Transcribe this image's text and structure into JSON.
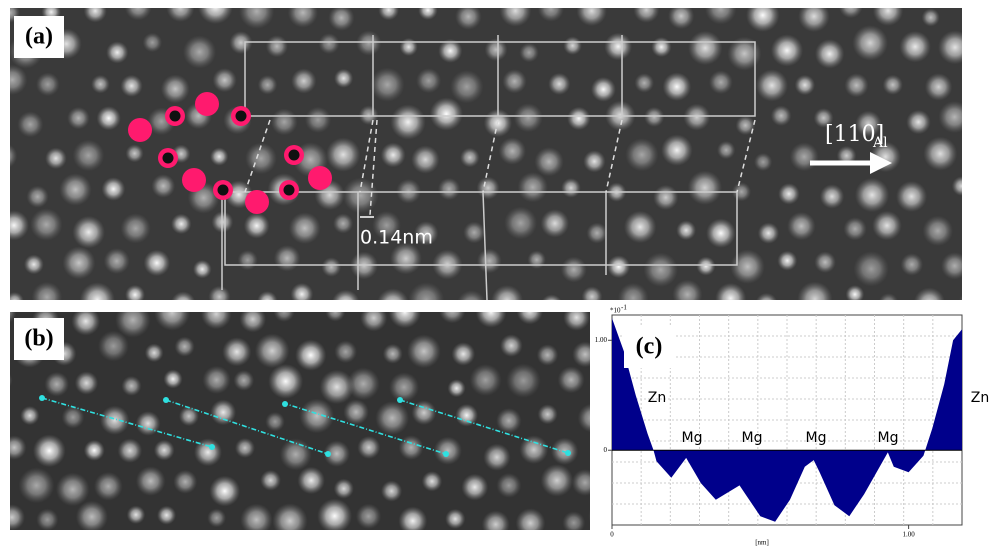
{
  "panel_a": {
    "label": "(a)",
    "scale_label": "0.14nm",
    "direction": "[110]",
    "direction_sub": "Al"
  },
  "panel_b": {
    "label": "(b)"
  },
  "panel_c": {
    "label": "(c)"
  },
  "chart_data": {
    "type": "area",
    "color": "#00008b",
    "x": [
      0,
      0.04,
      0.08,
      0.12,
      0.14,
      0.15,
      0.2,
      0.25,
      0.3,
      0.35,
      0.43,
      0.45,
      0.5,
      0.55,
      0.6,
      0.65,
      0.68,
      0.7,
      0.75,
      0.8,
      0.85,
      0.93,
      0.95,
      1.0,
      1.05,
      1.08,
      1.12,
      1.15,
      1.18
    ],
    "values": [
      1.2,
      0.9,
      0.5,
      0.15,
      0,
      -0.1,
      -0.25,
      -0.07,
      -0.3,
      -0.45,
      -0.32,
      -0.4,
      -0.6,
      -0.65,
      -0.45,
      -0.15,
      -0.09,
      -0.2,
      -0.5,
      -0.6,
      -0.4,
      -0.02,
      -0.15,
      -0.2,
      -0.05,
      0.2,
      0.6,
      1.0,
      1.1
    ],
    "xlim": [
      0,
      1.18
    ],
    "ylim": [
      -0.68,
      1.23
    ],
    "xticks": [
      0,
      {
        "value": 1,
        "label": "1.00"
      }
    ],
    "yticks": [
      {
        "value": 1,
        "label": "1.00"
      },
      0
    ],
    "xlabel": "[nm]",
    "y_multiplier": "*10",
    "y_exponent": "-1",
    "annotations": [
      "Zn",
      "Mg",
      "Mg",
      "Mg",
      "Mg",
      "Zn"
    ],
    "grid": true
  }
}
